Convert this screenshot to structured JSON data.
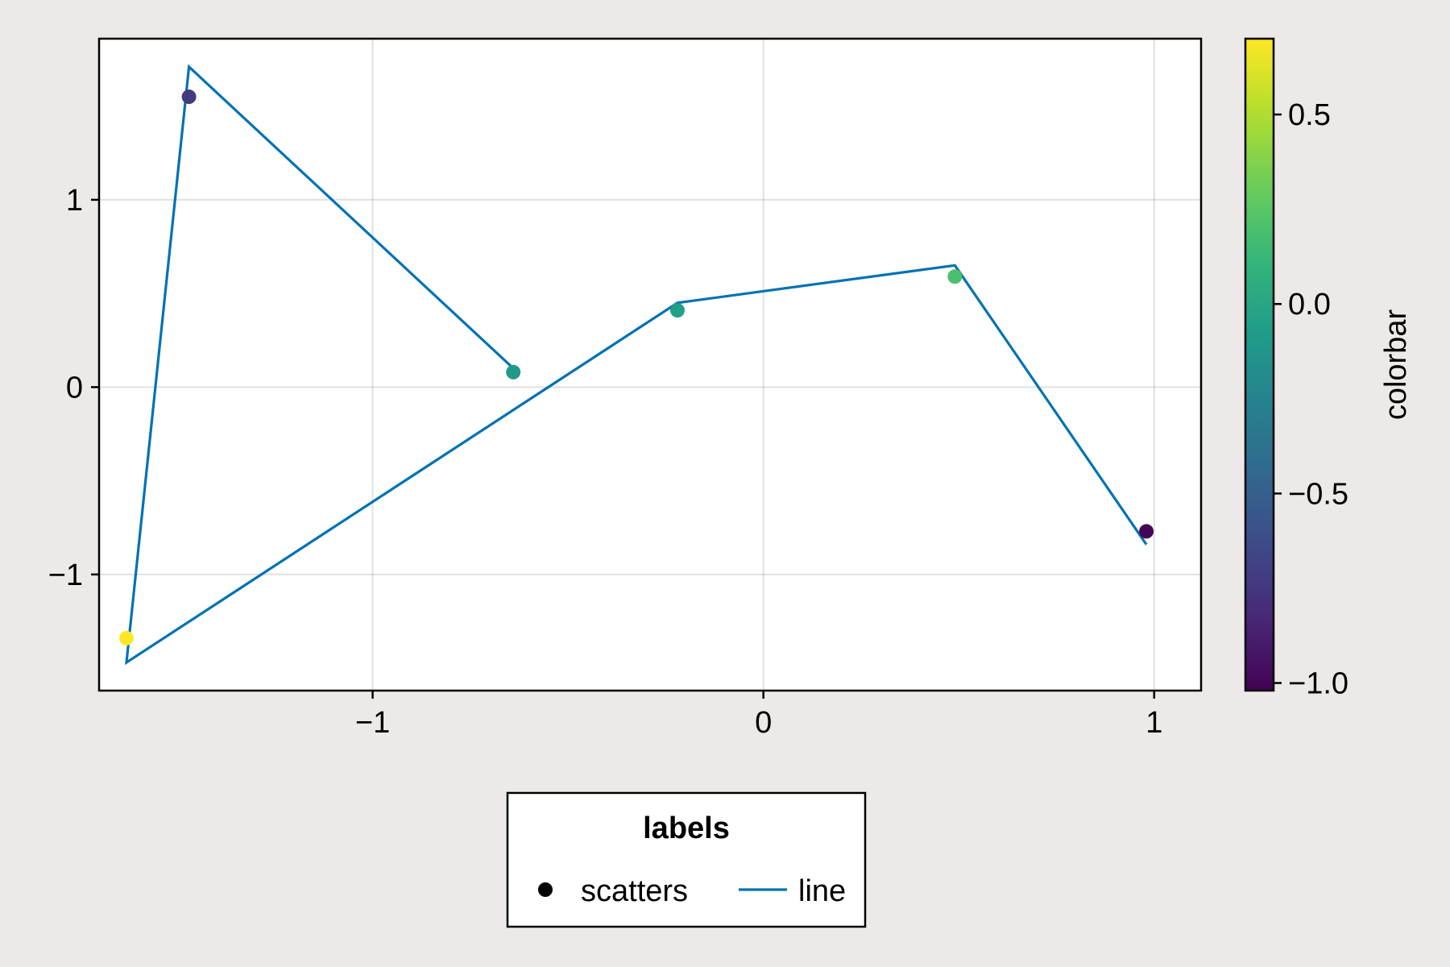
{
  "chart_data": {
    "type": "scatter",
    "x_ticks": [
      -1,
      0,
      1
    ],
    "x_tick_labels": [
      "−1",
      "0",
      "1"
    ],
    "y_ticks": [
      -1,
      0,
      1
    ],
    "y_tick_labels": [
      "−1",
      "0",
      "1"
    ],
    "xlim": [
      -1.7,
      1.12
    ],
    "ylim": [
      -1.62,
      1.86
    ],
    "grid": true,
    "series": [
      {
        "name": "scatters",
        "type": "scatter",
        "x": [
          -1.63,
          -1.47,
          -0.64,
          -0.22,
          0.49,
          0.98
        ],
        "y": [
          -1.34,
          1.55,
          0.08,
          0.41,
          0.59,
          -0.77
        ],
        "color_values": [
          0.7,
          -0.72,
          -0.1,
          -0.05,
          0.2,
          -1.0
        ]
      },
      {
        "name": "line",
        "type": "line",
        "color": "#0072b2",
        "x": [
          -1.47,
          -0.64,
          -0.22,
          0.49,
          0.98
        ],
        "y": [
          1.71,
          0.1,
          0.45,
          0.65,
          -0.84
        ],
        "x_closing": [
          -1.63,
          -1.47
        ],
        "y_closing": [
          -1.47,
          1.71
        ],
        "note_order": "line path: (-0.64,0.10) <- (-1.47,1.71) <- (-1.63,-1.47) -> (-0.22,0.45) -> (0.49,0.65) -> (0.98,-0.84)"
      }
    ],
    "colorbar": {
      "label": "colorbar",
      "colormap": "viridis",
      "range": [
        -1.02,
        0.7
      ],
      "ticks": [
        -1.0,
        -0.5,
        0.0,
        0.5
      ],
      "tick_labels": [
        "−1.0",
        "−0.5",
        "0.0",
        "0.5"
      ]
    },
    "legend": {
      "title": "labels",
      "entries": [
        "scatters",
        "line"
      ],
      "position": "bottom-center"
    }
  }
}
